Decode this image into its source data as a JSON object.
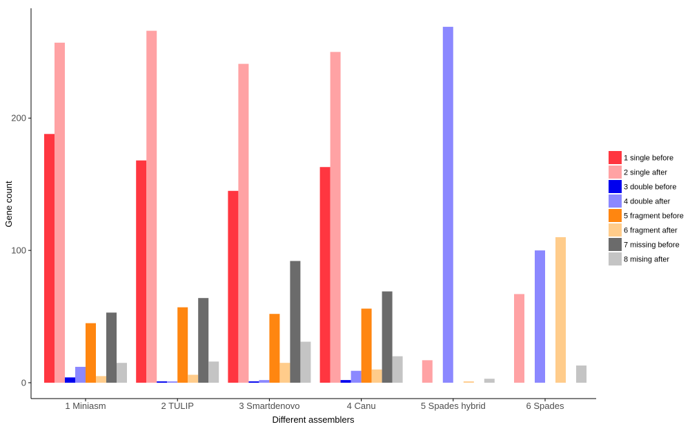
{
  "chart_data": {
    "type": "bar",
    "xlabel": "Different assemblers",
    "ylabel": "Gene count",
    "ylim": [
      -12,
      283
    ],
    "yticks": [
      0,
      100,
      200
    ],
    "grid": false,
    "legend_position": "right",
    "categories": [
      "1 Miniasm",
      "2 TULIP",
      "3 Smartdenovo",
      "4 Canu",
      "5 Spades hybrid",
      "6 Spades"
    ],
    "series": [
      {
        "name": "1 single before",
        "color": "#ff3640",
        "values": [
          188,
          168,
          145,
          163,
          0,
          0
        ]
      },
      {
        "name": "2 single after",
        "color": "#ffa2a4",
        "values": [
          257,
          266,
          241,
          250,
          17,
          67
        ]
      },
      {
        "name": "3 double before",
        "color": "#0000ee",
        "values": [
          4,
          1,
          1,
          2,
          0,
          0
        ]
      },
      {
        "name": "4 double after",
        "color": "#8b88ff",
        "values": [
          12,
          1,
          2,
          9,
          269,
          100
        ]
      },
      {
        "name": "5 fragment before",
        "color": "#ff8610",
        "values": [
          45,
          57,
          52,
          56,
          0,
          0
        ]
      },
      {
        "name": "6 fragment after",
        "color": "#ffcc8b",
        "values": [
          5,
          6,
          15,
          10,
          1,
          110
        ]
      },
      {
        "name": "7 missing before",
        "color": "#6b6b6b",
        "values": [
          53,
          64,
          92,
          69,
          0,
          0
        ]
      },
      {
        "name": "8 mising after",
        "color": "#c4c4c4",
        "values": [
          15,
          16,
          31,
          20,
          3,
          13
        ]
      }
    ]
  }
}
